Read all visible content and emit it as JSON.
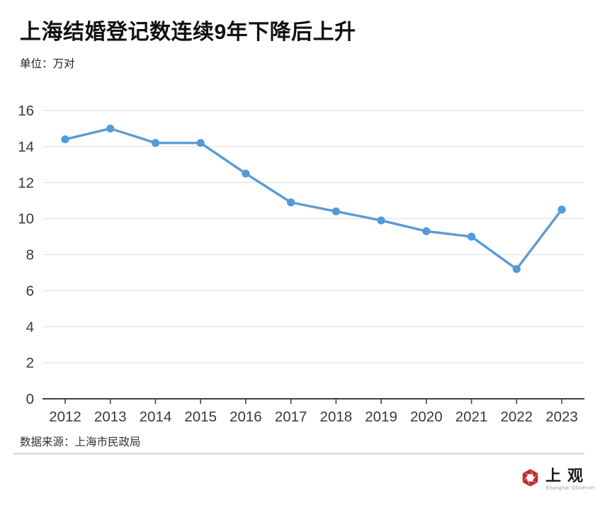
{
  "header": {
    "title": "上海结婚登记数连续9年下降后上升",
    "unit_label": "单位：万对"
  },
  "chart_data": {
    "type": "line",
    "title": "上海结婚登记数连续9年下降后上升",
    "unit": "万对",
    "categories": [
      "2012",
      "2013",
      "2014",
      "2015",
      "2016",
      "2017",
      "2018",
      "2019",
      "2020",
      "2021",
      "2022",
      "2023"
    ],
    "series": [
      {
        "name": "结婚登记数",
        "values": [
          14.4,
          15.0,
          14.2,
          14.2,
          12.5,
          10.9,
          10.4,
          9.9,
          9.3,
          9.0,
          7.2,
          10.5
        ]
      }
    ],
    "xlabel": "",
    "ylabel": "万对",
    "ylim": [
      0,
      16
    ],
    "ytick_step": 2,
    "grid": "horizontal",
    "legend": "none",
    "colors": {
      "line": "#5b9bd5",
      "marker": "#559ad6",
      "gridline": "#e4e4e4",
      "axis": "#3f3f3f",
      "tick_label": "#3a3a3a"
    }
  },
  "footer": {
    "source": "数据来源：上海市民政局"
  },
  "logo": {
    "wordmark": "上观",
    "tagline": "Shanghai Observer",
    "brand_color": "#c12a2f"
  }
}
